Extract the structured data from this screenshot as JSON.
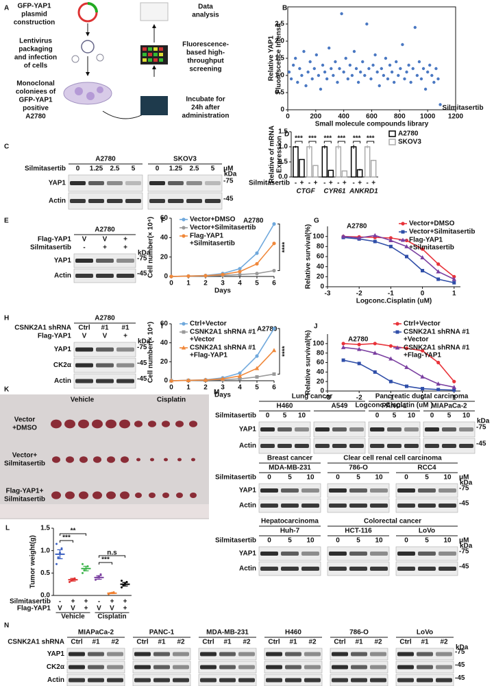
{
  "panel_a": {
    "letter": "A",
    "steps": [
      [
        "GFP-YAP1",
        "plasmid",
        "construction"
      ],
      [
        "Lentivirus",
        "packaging",
        "and infection",
        "of cells"
      ],
      [
        "Monoclonal",
        "coloniees of",
        "GFP-YAP1",
        "positive",
        "A2780"
      ],
      [
        "Data",
        "analysis"
      ],
      [
        "Fluorescence-",
        "based high-",
        "throughput",
        "screening"
      ],
      [
        "Incubate for",
        "24h after",
        "administration"
      ]
    ]
  },
  "chart_data": [
    {
      "type": "scatter",
      "letter": "B",
      "xlabel": "Small molecule compounds library",
      "ylabel": [
        "Relative YAP1",
        "Fluorescence Intensit"
      ],
      "annotation": "Silmitasertib",
      "color": "#4a78c2",
      "xlim": [
        0,
        1200
      ],
      "xticks": [
        0,
        200,
        400,
        600,
        800,
        1000,
        1200
      ],
      "ylim": [
        0,
        3
      ],
      "yticks": [
        0,
        0.5,
        {
          "value": 1,
          "label": "1.0"
        },
        1.5,
        {
          "value": 2,
          "label": "2.0"
        },
        2.5
      ],
      "x": [
        10,
        25,
        40,
        55,
        70,
        85,
        100,
        115,
        130,
        145,
        160,
        175,
        190,
        205,
        220,
        235,
        250,
        265,
        280,
        295,
        310,
        325,
        340,
        355,
        370,
        385,
        400,
        415,
        430,
        445,
        460,
        475,
        490,
        505,
        520,
        535,
        550,
        565,
        580,
        595,
        610,
        625,
        640,
        655,
        670,
        685,
        700,
        715,
        730,
        745,
        760,
        775,
        790,
        805,
        820,
        835,
        850,
        865,
        880,
        895,
        910,
        925,
        940,
        955,
        970,
        985,
        1000,
        1015,
        1030,
        1045,
        1060,
        1075,
        1090
      ],
      "y": [
        1.1,
        0.9,
        1.3,
        1.5,
        0.8,
        1.2,
        1.0,
        1.7,
        0.7,
        1.1,
        1.4,
        0.9,
        1.2,
        1.6,
        1.0,
        0.6,
        1.3,
        1.1,
        0.9,
        1.8,
        1.2,
        1.0,
        1.4,
        0.8,
        1.2,
        2.8,
        1.1,
        1.5,
        0.9,
        1.3,
        1.0,
        1.7,
        1.2,
        0.8,
        1.1,
        1.4,
        1.0,
        2.5,
        1.2,
        0.9,
        1.3,
        1.6,
        1.1,
        0.7,
        1.2,
        1.0,
        1.5,
        0.9,
        1.3,
        1.1,
        0.8,
        1.4,
        1.0,
        1.2,
        1.9,
        0.9,
        1.1,
        1.3,
        0.8,
        1.2,
        2.4,
        1.0,
        1.4,
        0.9,
        1.2,
        0.6,
        1.1,
        1.3,
        1.0,
        0.8,
        1.2,
        0.9,
        0.15
      ]
    },
    {
      "type": "bar",
      "letter": "D",
      "ylabel": [
        "Relative of mRNA",
        "Expression"
      ],
      "categories": [
        "CTGF",
        "CYR61",
        "ANKRD1"
      ],
      "row_label": "Silmitasertib",
      "treatment": [
        "-",
        "+"
      ],
      "significance": "***",
      "ylim": [
        0,
        1.5
      ],
      "yticks": [
        {
          "value": 0,
          "label": "0.0"
        },
        0.5,
        {
          "value": 1,
          "label": "1.0"
        },
        1.5
      ],
      "series": [
        {
          "name": "A2780",
          "color": "#000000",
          "values": [
            [
              1.0,
              0.58
            ],
            [
              1.0,
              0.22
            ],
            [
              1.0,
              0.24
            ]
          ],
          "errors": [
            [
              0.03,
              0.01
            ],
            [
              0.06,
              0.01
            ],
            [
              0.07,
              0.03
            ]
          ]
        },
        {
          "name": "SKOV3",
          "color": "#aaaaaa",
          "values": [
            [
              1.0,
              0.38
            ],
            [
              1.0,
              0.2
            ],
            [
              1.0,
              0.55
            ]
          ],
          "errors": [
            [
              0.08,
              0.01
            ],
            [
              0.08,
              0.01
            ],
            [
              0.05,
              0.02
            ]
          ]
        }
      ]
    },
    {
      "type": "line",
      "letter": "F",
      "title": "A2780",
      "xlabel": "Days",
      "ylabel": "Cell number(× 10⁴)",
      "annotations": [
        "****"
      ],
      "xlim": [
        0,
        6
      ],
      "xticks": [
        0,
        1,
        2,
        3,
        4,
        5,
        6
      ],
      "ylim": [
        0,
        60
      ],
      "yticks": [
        0,
        20,
        40,
        60
      ],
      "x": [
        0,
        1,
        2,
        3,
        4,
        5,
        6
      ],
      "series": [
        {
          "name": "Vector+DMSO",
          "color": "#6fa8dc",
          "marker": "circle",
          "values": [
            0,
            0.5,
            1,
            3,
            8,
            24,
            54
          ]
        },
        {
          "name": "Vector+Silmitasertib",
          "color": "#999999",
          "marker": "circle",
          "values": [
            0,
            0.3,
            0.5,
            1,
            2,
            3,
            6
          ]
        },
        {
          "name": [
            "Flag-YAP1",
            "+Silmitasertib"
          ],
          "color": "#f0883a",
          "marker": "circle",
          "values": [
            0,
            0.4,
            0.8,
            2,
            5,
            13,
            34
          ]
        }
      ]
    },
    {
      "type": "line",
      "letter": "G",
      "title": "A2780",
      "xlabel": "Logconc.Cisplatin (uM)",
      "ylabel": "Relative survival(%)",
      "xlim": [
        -3,
        1.2
      ],
      "xticks": [
        -3,
        -2,
        -1,
        0,
        1
      ],
      "ylim": [
        0,
        120
      ],
      "yticks": [
        0,
        20,
        40,
        60,
        80,
        100
      ],
      "x": [
        -2.5,
        -2,
        -1.5,
        -1,
        -0.5,
        0,
        0.5,
        1
      ],
      "series": [
        {
          "name": "Vector+DMSO",
          "color": "#e8333a",
          "marker": "circle",
          "values": [
            100,
            99,
            98,
            97,
            92,
            75,
            45,
            20
          ]
        },
        {
          "name": "Vector+Silmitasertib",
          "color": "#2f4ea8",
          "marker": "square",
          "values": [
            98,
            95,
            90,
            80,
            60,
            32,
            15,
            8
          ]
        },
        {
          "name": [
            "Flag-YAP1",
            "+Silmitasertib"
          ],
          "color": "#7a3fa0",
          "marker": "triangle",
          "values": [
            100,
            97,
            102,
            92,
            80,
            58,
            30,
            15
          ]
        }
      ]
    },
    {
      "type": "line",
      "letter": "I",
      "title": "A2780",
      "xlabel": "Days",
      "ylabel": "Cell number(× 10⁴)",
      "annotations": [
        "****"
      ],
      "xlim": [
        0,
        6
      ],
      "xticks": [
        0,
        1,
        2,
        3,
        4,
        5,
        6
      ],
      "ylim": [
        0,
        60
      ],
      "yticks": [
        0,
        20,
        40,
        60
      ],
      "x": [
        0,
        1,
        2,
        3,
        4,
        5,
        6
      ],
      "series": [
        {
          "name": "Ctrl+Vector",
          "color": "#6fa8dc",
          "marker": "circle",
          "values": [
            0,
            0.5,
            1,
            3,
            8,
            26,
            55
          ]
        },
        {
          "name": [
            "CSNK2A1 shRNA #1",
            "+Vector"
          ],
          "color": "#999999",
          "marker": "square",
          "values": [
            0,
            0.3,
            0.5,
            1,
            2,
            4,
            7
          ]
        },
        {
          "name": [
            "CSNK2A1 shRNA #1",
            "+Flag-YAP1"
          ],
          "color": "#f0883a",
          "marker": "triangle",
          "values": [
            0,
            0.4,
            0.8,
            2,
            5,
            13,
            32
          ]
        }
      ]
    },
    {
      "type": "line",
      "letter": "J",
      "title": "A2780",
      "xlabel": "Logconc.Cisplatin (uM )",
      "ylabel": "Relative survival(%)",
      "xlim": [
        -3,
        1.2
      ],
      "xticks": [
        -3,
        -2,
        -1,
        0,
        1
      ],
      "ylim": [
        0,
        120
      ],
      "yticks": [
        0,
        20,
        40,
        60,
        80,
        100
      ],
      "x": [
        -2.5,
        -2,
        -1.5,
        -1,
        -0.5,
        0,
        0.5,
        1
      ],
      "series": [
        {
          "name": "Ctrl+Vector",
          "color": "#e8333a",
          "marker": "circle",
          "values": [
            100,
            98,
            100,
            95,
            90,
            85,
            60,
            20
          ]
        },
        {
          "name": [
            "CSNK2A1 shRNA #1",
            "+Vector"
          ],
          "color": "#2f4ea8",
          "marker": "square",
          "values": [
            65,
            58,
            40,
            20,
            10,
            5,
            3,
            2
          ]
        },
        {
          "name": [
            "CSNK2A1 shRNA #1",
            "+Flag-YAP1"
          ],
          "color": "#7a3fa0",
          "marker": "triangle",
          "values": [
            92,
            88,
            80,
            68,
            50,
            30,
            15,
            8
          ]
        }
      ]
    },
    {
      "type": "dot",
      "letter": "L",
      "ylabel": "Tumor weight(g)",
      "groups": [
        "Vehicle",
        "Cisplatin"
      ],
      "significance": [
        "***",
        "**",
        "***",
        "n.s"
      ],
      "ylim": [
        0,
        1.5
      ],
      "yticks": [
        {
          "value": 0,
          "label": "0.0"
        },
        0.5,
        {
          "value": 1,
          "label": "1.0"
        },
        1.5
      ],
      "rows": [
        {
          "label": "Silmitasertib",
          "values": [
            "-",
            "+",
            "+",
            "-",
            "+",
            "+"
          ]
        },
        {
          "label": "Flag-YAP1",
          "values": [
            "V",
            "V",
            "+",
            "V",
            "V",
            "+"
          ]
        }
      ],
      "colors": [
        "#3a5fc0",
        "#e03030",
        "#3cb44b",
        "#7a3fa0",
        "#f08030",
        "#000000"
      ],
      "means": [
        0.92,
        0.35,
        0.6,
        0.4,
        0.05,
        0.25
      ],
      "errors": [
        0.1,
        0.03,
        0.05,
        0.04,
        0.01,
        0.04
      ],
      "points": [
        [
          0.7,
          0.85,
          0.95,
          1.05,
          1.15
        ],
        [
          0.3,
          0.33,
          0.36,
          0.38
        ],
        [
          0.5,
          0.56,
          0.6,
          0.65,
          0.7
        ],
        [
          0.35,
          0.4,
          0.43,
          0.47
        ],
        [
          0.03,
          0.05,
          0.06,
          0.07
        ],
        [
          0.18,
          0.22,
          0.26,
          0.3,
          0.33
        ]
      ]
    }
  ],
  "blots": [
    {
      "letter": "C",
      "lane_labels": [
        "Silmitasertib"
      ],
      "unit": "μM",
      "kda": "kDa",
      "rows": [
        "YAP1",
        "Actin"
      ],
      "markers": [
        "-75",
        "-45"
      ],
      "groups": [
        {
          "name": "A2780",
          "lanes": [
            [
              "0",
              "1.25",
              "2.5",
              "5"
            ]
          ]
        },
        {
          "name": "SKOV3",
          "lanes": [
            [
              "0",
              "1.25",
              "2.5",
              "5"
            ]
          ]
        }
      ]
    },
    {
      "letter": "E",
      "lane_labels": [
        "Flag-YAP1",
        "Silmitasertib"
      ],
      "kda": "kDa",
      "rows": [
        "YAP1",
        "Actin"
      ],
      "markers": [
        "-75",
        "-45"
      ],
      "groups": [
        {
          "name": "A2780",
          "lanes": [
            [
              "V",
              "V",
              "+"
            ],
            [
              "-",
              "+",
              "+"
            ]
          ]
        }
      ]
    },
    {
      "letter": "H",
      "lane_labels": [
        "CSNK2A1 shRNA",
        "Flag-YAP1"
      ],
      "kda": "kDa",
      "rows": [
        "YAP1",
        "CK2α",
        "Actin"
      ],
      "markers": [
        "-75",
        "-45",
        "-45"
      ],
      "groups": [
        {
          "name": "A2780",
          "lanes": [
            [
              "Ctrl",
              "#1",
              "#1"
            ],
            [
              "V",
              "V",
              "+"
            ]
          ]
        }
      ]
    },
    {
      "letter": "M",
      "lane_labels": [
        "Silmitasertib"
      ],
      "kda": "kDa",
      "rows": [
        "YAP1",
        "Actin"
      ],
      "markers": [
        "-75",
        "-45"
      ],
      "categories": [
        {
          "name": "Lung cancer",
          "groups": [
            {
              "name": "H460",
              "lanes": [
                [
                  "0",
                  "5",
                  "10"
                ]
              ]
            },
            {
              "name": "A549",
              "lanes": [
                []
              ]
            }
          ]
        },
        {
          "name": "Pancreatic ductal carcinoma",
          "groups": [
            {
              "name": "PANC-1",
              "lanes": [
                [
                  "0",
                  "5",
                  "10"
                ]
              ]
            },
            {
              "name": "MIAPaCa-2",
              "lanes": [
                [
                  "0",
                  "5",
                  "10"
                ]
              ]
            }
          ]
        }
      ]
    },
    {
      "lane_labels": [
        "Silmitasertib"
      ],
      "unit": "μM",
      "kda": "kDa",
      "rows": [
        "YAP1",
        "Actin"
      ],
      "markers": [
        "-75",
        "-45"
      ],
      "categories": [
        {
          "name": "Breast cancer",
          "groups": [
            {
              "name": "MDA-MB-231",
              "lanes": [
                [
                  "0",
                  "5",
                  "10"
                ]
              ]
            }
          ]
        },
        {
          "name": "Clear cell renal cell carcinoma",
          "groups": [
            {
              "name": "786-O",
              "lanes": [
                [
                  "0",
                  "5",
                  "10"
                ]
              ]
            },
            {
              "name": "RCC4",
              "lanes": [
                [
                  "0",
                  "5",
                  "10"
                ]
              ]
            }
          ]
        }
      ]
    },
    {
      "lane_labels": [
        "Silmitasertib"
      ],
      "unit": "μM",
      "kda": "kDa",
      "rows": [
        "YAP1",
        "Actin"
      ],
      "markers": [
        "-75",
        "-45"
      ],
      "categories": [
        {
          "name": "Hepatocarcinoma",
          "groups": [
            {
              "name": "Huh-7",
              "lanes": [
                [
                  "0",
                  "5",
                  "10"
                ]
              ]
            }
          ]
        },
        {
          "name": "Colorectal cancer",
          "groups": [
            {
              "name": "HCT-116",
              "lanes": [
                [
                  "0",
                  "5",
                  "10"
                ]
              ]
            },
            {
              "name": "LoVo",
              "lanes": [
                [
                  "0",
                  "5",
                  "10"
                ]
              ]
            }
          ]
        }
      ]
    },
    {
      "letter": "N",
      "lane_labels": [
        "CSNK2A1 shRNA"
      ],
      "kda": "kDa",
      "rows": [
        "YAP1",
        "CK2α",
        "Actin"
      ],
      "markers": [
        "-75",
        "-45",
        "-45"
      ],
      "groups": [
        {
          "name": "MIAPaCa-2",
          "lanes": [
            [
              "Ctrl",
              "#1",
              "#2"
            ]
          ]
        },
        {
          "name": "PANC-1",
          "lanes": [
            [
              "Ctrl",
              "#1",
              "#2"
            ]
          ]
        },
        {
          "name": "MDA-MB-231",
          "lanes": [
            [
              "Ctrl",
              "#1",
              "#2"
            ]
          ]
        },
        {
          "name": "H460",
          "lanes": [
            [
              "Ctrl",
              "#1",
              "#2"
            ]
          ]
        },
        {
          "name": "786-O",
          "lanes": [
            [
              "Ctrl",
              "#1",
              "#2"
            ]
          ]
        },
        {
          "name": "LoVo",
          "lanes": [
            [
              "Ctrl",
              "#1",
              "#2"
            ]
          ]
        }
      ]
    }
  ],
  "panel_k": {
    "letter": "K",
    "columns": [
      "Vehicle",
      "Cisplatin"
    ],
    "rows": [
      [
        "Vector",
        "+DMSO"
      ],
      [
        "Vector+",
        "Silmitasertib"
      ],
      [
        "Flag-YAP1+",
        "Silmitasertib"
      ]
    ]
  }
}
